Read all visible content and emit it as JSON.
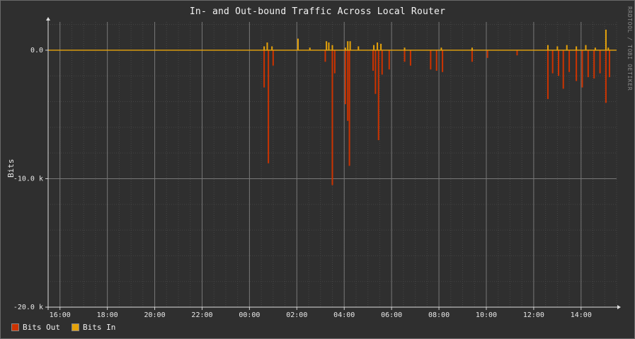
{
  "chart_data": {
    "type": "area",
    "title": "In- and Out-bound Traffic Across Local Router",
    "ylabel": "Bits",
    "xlabel": "",
    "watermark": "RRDTOOL / TOBI OETIKER",
    "x_ticks": [
      "16:00",
      "18:00",
      "20:00",
      "22:00",
      "00:00",
      "02:00",
      "04:00",
      "06:00",
      "08:00",
      "10:00",
      "12:00",
      "14:00"
    ],
    "y_ticks": [
      "0.0",
      "-10.0 k",
      "-20.0 k"
    ],
    "ylim": [
      -20000,
      2200
    ],
    "x_unit": "hours since 15:30",
    "xlim": [
      0,
      24
    ],
    "grid": true,
    "legend_position": "bottom-left",
    "series": [
      {
        "name": "Bits Out",
        "color": "#cc3300",
        "points": [
          [
            9.12,
            -2900
          ],
          [
            9.3,
            -8800
          ],
          [
            9.5,
            -1200
          ],
          [
            11.7,
            -900
          ],
          [
            12.0,
            -10500
          ],
          [
            12.1,
            -1800
          ],
          [
            12.55,
            -4200
          ],
          [
            12.65,
            -5500
          ],
          [
            12.72,
            -9000
          ],
          [
            13.72,
            -1600
          ],
          [
            13.82,
            -3400
          ],
          [
            13.95,
            -7000
          ],
          [
            14.1,
            -1900
          ],
          [
            14.4,
            -1500
          ],
          [
            15.05,
            -900
          ],
          [
            15.3,
            -1200
          ],
          [
            16.15,
            -1500
          ],
          [
            16.4,
            -1600
          ],
          [
            16.65,
            -1700
          ],
          [
            17.9,
            -900
          ],
          [
            18.55,
            -600
          ],
          [
            19.8,
            -400
          ],
          [
            21.1,
            -3800
          ],
          [
            21.3,
            -1800
          ],
          [
            21.55,
            -2000
          ],
          [
            21.75,
            -3000
          ],
          [
            22.0,
            -1700
          ],
          [
            22.3,
            -2400
          ],
          [
            22.55,
            -2900
          ],
          [
            22.8,
            -2100
          ],
          [
            23.05,
            -2200
          ],
          [
            23.3,
            -1800
          ],
          [
            23.55,
            -4100
          ],
          [
            23.7,
            -2100
          ]
        ]
      },
      {
        "name": "Bits In",
        "color": "#e5a20a",
        "points": [
          [
            9.12,
            300
          ],
          [
            9.25,
            600
          ],
          [
            9.45,
            300
          ],
          [
            10.55,
            900
          ],
          [
            11.05,
            200
          ],
          [
            11.75,
            700
          ],
          [
            11.85,
            600
          ],
          [
            12.0,
            400
          ],
          [
            12.55,
            200
          ],
          [
            12.65,
            700
          ],
          [
            12.75,
            700
          ],
          [
            13.1,
            300
          ],
          [
            13.75,
            400
          ],
          [
            13.9,
            600
          ],
          [
            14.05,
            500
          ],
          [
            15.05,
            200
          ],
          [
            16.6,
            200
          ],
          [
            17.9,
            200
          ],
          [
            21.1,
            400
          ],
          [
            21.5,
            300
          ],
          [
            21.9,
            400
          ],
          [
            22.3,
            300
          ],
          [
            22.7,
            400
          ],
          [
            23.1,
            200
          ],
          [
            23.55,
            1600
          ],
          [
            23.65,
            200
          ]
        ]
      }
    ]
  }
}
